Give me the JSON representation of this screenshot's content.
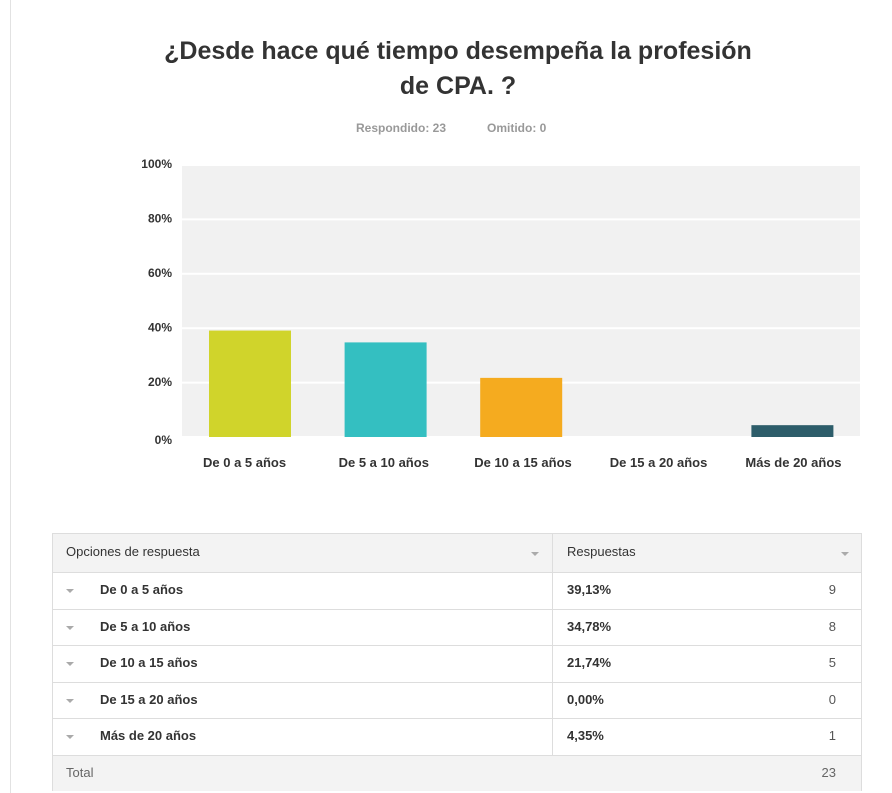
{
  "chart_data": {
    "type": "bar",
    "title": "¿Desde hace qué tiempo desempeña la profesión de CPA. ?",
    "answered": "Respondido: 23",
    "skipped": "Omitido: 0",
    "categories": [
      "De 0 a 5 años",
      "De 5 a 10 años",
      "De 10 a 15 años",
      "De 15 a 20 años",
      "Más de 20 años"
    ],
    "values": [
      39.13,
      34.78,
      21.74,
      0,
      4.35
    ],
    "colors": [
      "#d0d42b",
      "#34bfc1",
      "#f5ab1f",
      "#8e8e8e",
      "#2d5d6a"
    ],
    "ylim": [
      0,
      100
    ],
    "yticks": [
      {
        "value": 0,
        "label": "0%"
      },
      {
        "value": 20,
        "label": "20%"
      },
      {
        "value": 40,
        "label": "40%"
      },
      {
        "value": 60,
        "label": "60%"
      },
      {
        "value": 80,
        "label": "80%"
      },
      {
        "value": 100,
        "label": "100%"
      }
    ],
    "grid": true
  },
  "table": {
    "header": [
      "Opciones de respuesta",
      "Respuestas"
    ],
    "rows": [
      [
        "De 0 a 5 años",
        "39,13%",
        "9"
      ],
      [
        "De 5 a 10 años",
        "34,78%",
        "8"
      ],
      [
        "De 10 a 15 años",
        "21,74%",
        "5"
      ],
      [
        "De 15 a 20 años",
        "0,00%",
        "0"
      ],
      [
        "Más de 20 años",
        "4,35%",
        "1"
      ]
    ],
    "total": [
      "Total",
      "23"
    ]
  }
}
